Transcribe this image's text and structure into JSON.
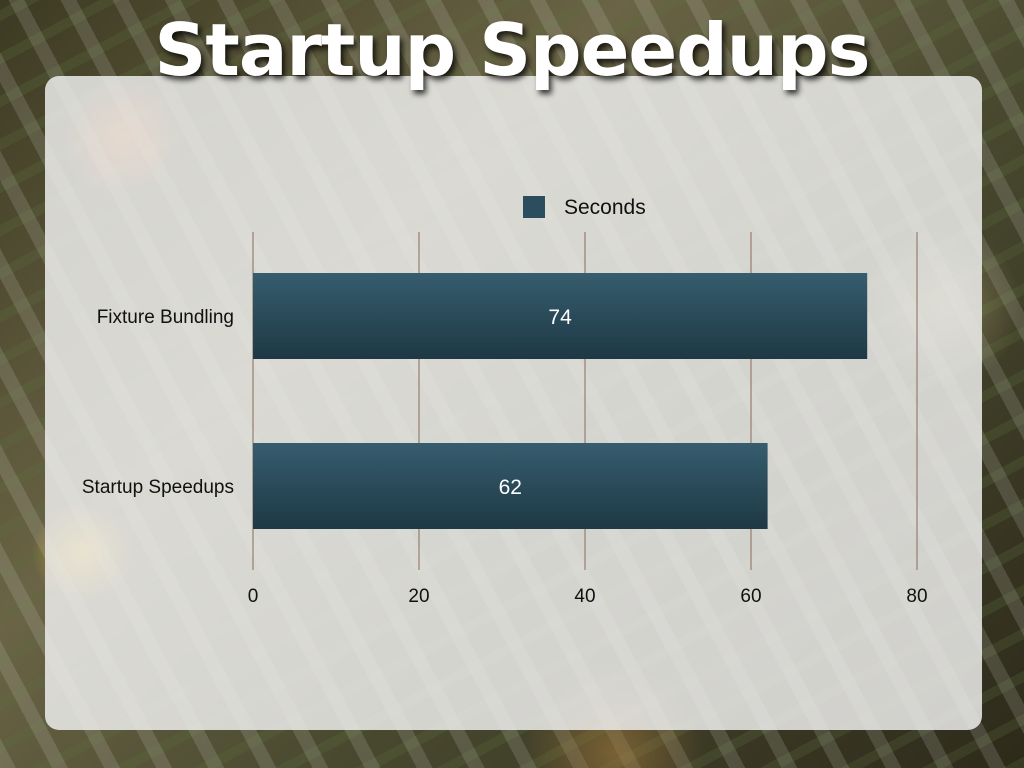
{
  "slide": {
    "title": "Startup Speedups"
  },
  "chart_data": {
    "type": "bar",
    "orientation": "horizontal",
    "categories": [
      "Fixture Bundling",
      "Startup Speedups"
    ],
    "series": [
      {
        "name": "Seconds",
        "values": [
          74,
          62
        ],
        "color": "#2b4d5e"
      }
    ],
    "xlim": [
      0,
      80
    ],
    "xticks": [
      0,
      20,
      40,
      60,
      80
    ],
    "data_labels": [
      "74",
      "62"
    ],
    "grid": "vertical",
    "legend": "top-center",
    "colors": {
      "gridline": "#8a6a5a",
      "bar_top": "#365d6e",
      "bar_bottom": "#1e3845",
      "label": "#ffffff"
    }
  }
}
